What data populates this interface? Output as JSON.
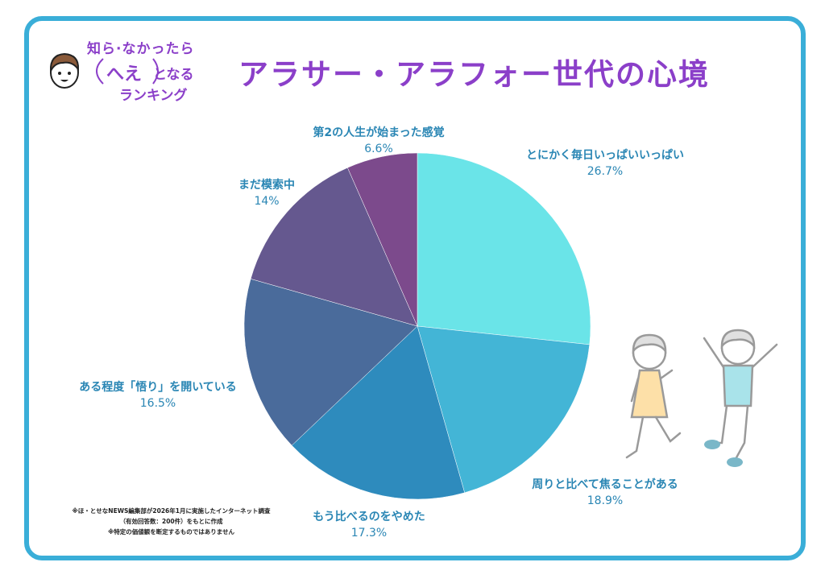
{
  "logo": {
    "line1": "知ら·なかったら",
    "line2": "へえ",
    "line2b": "となる",
    "line3": "ランキング"
  },
  "title": "アラサー・アラフォー世代の心境",
  "chart_data": {
    "type": "pie",
    "title": "アラサー・アラフォー世代の心境",
    "start_angle_deg": 0,
    "direction": "clockwise",
    "slices": [
      {
        "label": "とにかく毎日いっぱいいっぱい",
        "value": 26.7,
        "value_label": "26.7%",
        "color": "#6ae4e8"
      },
      {
        "label": "周りと比べて焦ることがある",
        "value": 18.9,
        "value_label": "18.9%",
        "color": "#43b5d6"
      },
      {
        "label": "もう比べるのをやめた",
        "value": 17.3,
        "value_label": "17.3%",
        "color": "#2e8bbd"
      },
      {
        "label": "ある程度「悟り」を開いている",
        "value": 16.5,
        "value_label": "16.5%",
        "color": "#4a6b9b"
      },
      {
        "label": "まだ模索中",
        "value": 14,
        "value_label": "14%",
        "color": "#65588f"
      },
      {
        "label": "第2の人生が始まった感覚",
        "value": 6.6,
        "value_label": "6.6%",
        "color": "#7c4a8c"
      }
    ]
  },
  "footnote": {
    "line1": "※ほ・とせなNEWS編集部が2026年1月に実施したインターネット調査",
    "line2": "（有効回答数：200件）をもとに作成",
    "line3": "※特定の価値観を断定するものではありません"
  },
  "colors": {
    "accent": "#8b3fc9",
    "frame": "#3aaed8",
    "label": "#2a86b4"
  }
}
